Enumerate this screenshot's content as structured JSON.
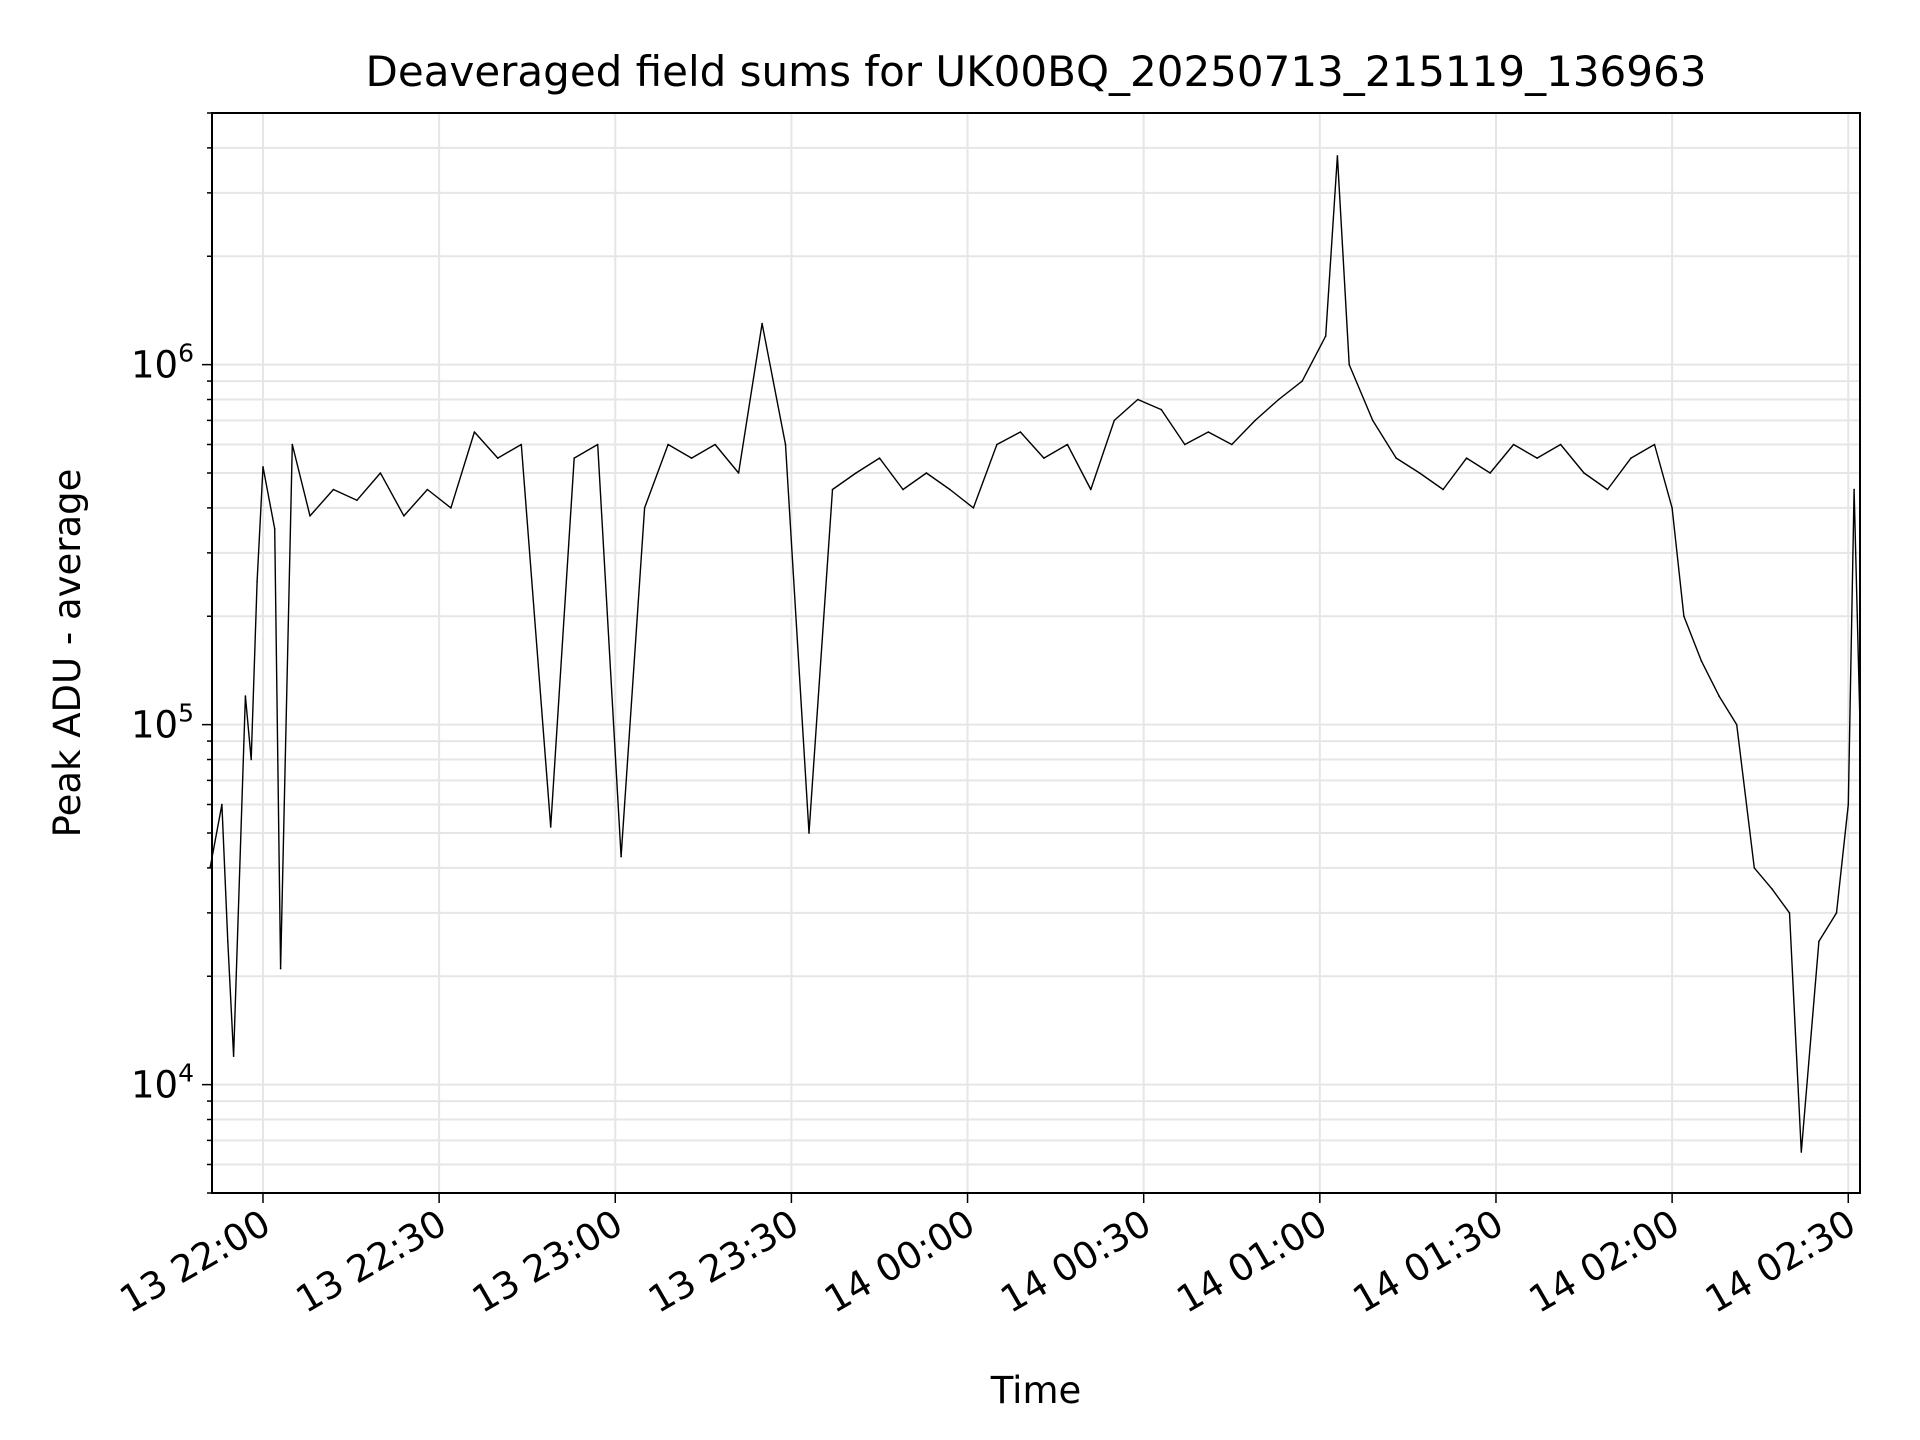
{
  "chart_data": {
    "type": "line",
    "title": "Deaveraged field sums for UK00BQ_20250713_215119_136963",
    "xlabel": "Time",
    "ylabel": "Peak ADU - average",
    "yscale": "log",
    "ylim": [
      5000,
      5000000
    ],
    "xlim": [
      "2025-07-13 21:51:19",
      "2025-07-14 02:32:00"
    ],
    "grid": true,
    "line_color": "#000000",
    "grid_color": "#e6e6e6",
    "x_ticks": [
      {
        "t": "2025-07-13 22:00",
        "label": "13 22:00"
      },
      {
        "t": "2025-07-13 22:30",
        "label": "13 22:30"
      },
      {
        "t": "2025-07-13 23:00",
        "label": "13 23:00"
      },
      {
        "t": "2025-07-13 23:30",
        "label": "13 23:30"
      },
      {
        "t": "2025-07-14 00:00",
        "label": "14 00:00"
      },
      {
        "t": "2025-07-14 00:30",
        "label": "14 00:30"
      },
      {
        "t": "2025-07-14 01:00",
        "label": "14 01:00"
      },
      {
        "t": "2025-07-14 01:30",
        "label": "14 01:30"
      },
      {
        "t": "2025-07-14 02:00",
        "label": "14 02:00"
      },
      {
        "t": "2025-07-14 02:30",
        "label": "14 02:30"
      }
    ],
    "y_ticks": [
      {
        "value": 10000,
        "base": "10",
        "exp": "4"
      },
      {
        "value": 100000,
        "base": "10",
        "exp": "5"
      },
      {
        "value": 1000000,
        "base": "10",
        "exp": "6"
      }
    ],
    "series": [
      {
        "values": [
          [
            "2025-07-13 21:51",
            40000
          ],
          [
            "2025-07-13 21:53",
            60000
          ],
          [
            "2025-07-13 21:54",
            25000
          ],
          [
            "2025-07-13 21:55",
            12000
          ],
          [
            "2025-07-13 21:57",
            120000
          ],
          [
            "2025-07-13 21:58",
            80000
          ],
          [
            "2025-07-13 21:59",
            250000
          ],
          [
            "2025-07-13 22:00",
            520000
          ],
          [
            "2025-07-13 22:02",
            350000
          ],
          [
            "2025-07-13 22:03",
            21000
          ],
          [
            "2025-07-13 22:05",
            600000
          ],
          [
            "2025-07-13 22:08",
            380000
          ],
          [
            "2025-07-13 22:12",
            450000
          ],
          [
            "2025-07-13 22:16",
            420000
          ],
          [
            "2025-07-13 22:20",
            500000
          ],
          [
            "2025-07-13 22:24",
            380000
          ],
          [
            "2025-07-13 22:28",
            450000
          ],
          [
            "2025-07-13 22:32",
            400000
          ],
          [
            "2025-07-13 22:36",
            650000
          ],
          [
            "2025-07-13 22:40",
            550000
          ],
          [
            "2025-07-13 22:44",
            600000
          ],
          [
            "2025-07-13 22:49",
            52000
          ],
          [
            "2025-07-13 22:53",
            550000
          ],
          [
            "2025-07-13 22:57",
            600000
          ],
          [
            "2025-07-13 23:01",
            43000
          ],
          [
            "2025-07-13 23:05",
            400000
          ],
          [
            "2025-07-13 23:09",
            600000
          ],
          [
            "2025-07-13 23:13",
            550000
          ],
          [
            "2025-07-13 23:17",
            600000
          ],
          [
            "2025-07-13 23:21",
            500000
          ],
          [
            "2025-07-13 23:25",
            1300000
          ],
          [
            "2025-07-13 23:29",
            600000
          ],
          [
            "2025-07-13 23:33",
            50000
          ],
          [
            "2025-07-13 23:37",
            450000
          ],
          [
            "2025-07-13 23:41",
            500000
          ],
          [
            "2025-07-13 23:45",
            550000
          ],
          [
            "2025-07-13 23:49",
            450000
          ],
          [
            "2025-07-13 23:53",
            500000
          ],
          [
            "2025-07-13 23:57",
            450000
          ],
          [
            "2025-07-14 00:01",
            400000
          ],
          [
            "2025-07-14 00:05",
            600000
          ],
          [
            "2025-07-14 00:09",
            650000
          ],
          [
            "2025-07-14 00:13",
            550000
          ],
          [
            "2025-07-14 00:17",
            600000
          ],
          [
            "2025-07-14 00:21",
            450000
          ],
          [
            "2025-07-14 00:25",
            700000
          ],
          [
            "2025-07-14 00:29",
            800000
          ],
          [
            "2025-07-14 00:33",
            750000
          ],
          [
            "2025-07-14 00:37",
            600000
          ],
          [
            "2025-07-14 00:41",
            650000
          ],
          [
            "2025-07-14 00:45",
            600000
          ],
          [
            "2025-07-14 00:49",
            700000
          ],
          [
            "2025-07-14 00:53",
            800000
          ],
          [
            "2025-07-14 00:57",
            900000
          ],
          [
            "2025-07-14 01:01",
            1200000
          ],
          [
            "2025-07-14 01:03",
            3800000
          ],
          [
            "2025-07-14 01:05",
            1000000
          ],
          [
            "2025-07-14 01:09",
            700000
          ],
          [
            "2025-07-14 01:13",
            550000
          ],
          [
            "2025-07-14 01:17",
            500000
          ],
          [
            "2025-07-14 01:21",
            450000
          ],
          [
            "2025-07-14 01:25",
            550000
          ],
          [
            "2025-07-14 01:29",
            500000
          ],
          [
            "2025-07-14 01:33",
            600000
          ],
          [
            "2025-07-14 01:37",
            550000
          ],
          [
            "2025-07-14 01:41",
            600000
          ],
          [
            "2025-07-14 01:45",
            500000
          ],
          [
            "2025-07-14 01:49",
            450000
          ],
          [
            "2025-07-14 01:53",
            550000
          ],
          [
            "2025-07-14 01:57",
            600000
          ],
          [
            "2025-07-14 02:00",
            400000
          ],
          [
            "2025-07-14 02:02",
            200000
          ],
          [
            "2025-07-14 02:05",
            150000
          ],
          [
            "2025-07-14 02:08",
            120000
          ],
          [
            "2025-07-14 02:11",
            100000
          ],
          [
            "2025-07-14 02:14",
            40000
          ],
          [
            "2025-07-14 02:17",
            35000
          ],
          [
            "2025-07-14 02:20",
            30000
          ],
          [
            "2025-07-14 02:22",
            6500
          ],
          [
            "2025-07-14 02:25",
            25000
          ],
          [
            "2025-07-14 02:28",
            30000
          ],
          [
            "2025-07-14 02:30",
            60000
          ],
          [
            "2025-07-14 02:31",
            450000
          ],
          [
            "2025-07-14 02:32",
            100000
          ]
        ]
      }
    ]
  }
}
